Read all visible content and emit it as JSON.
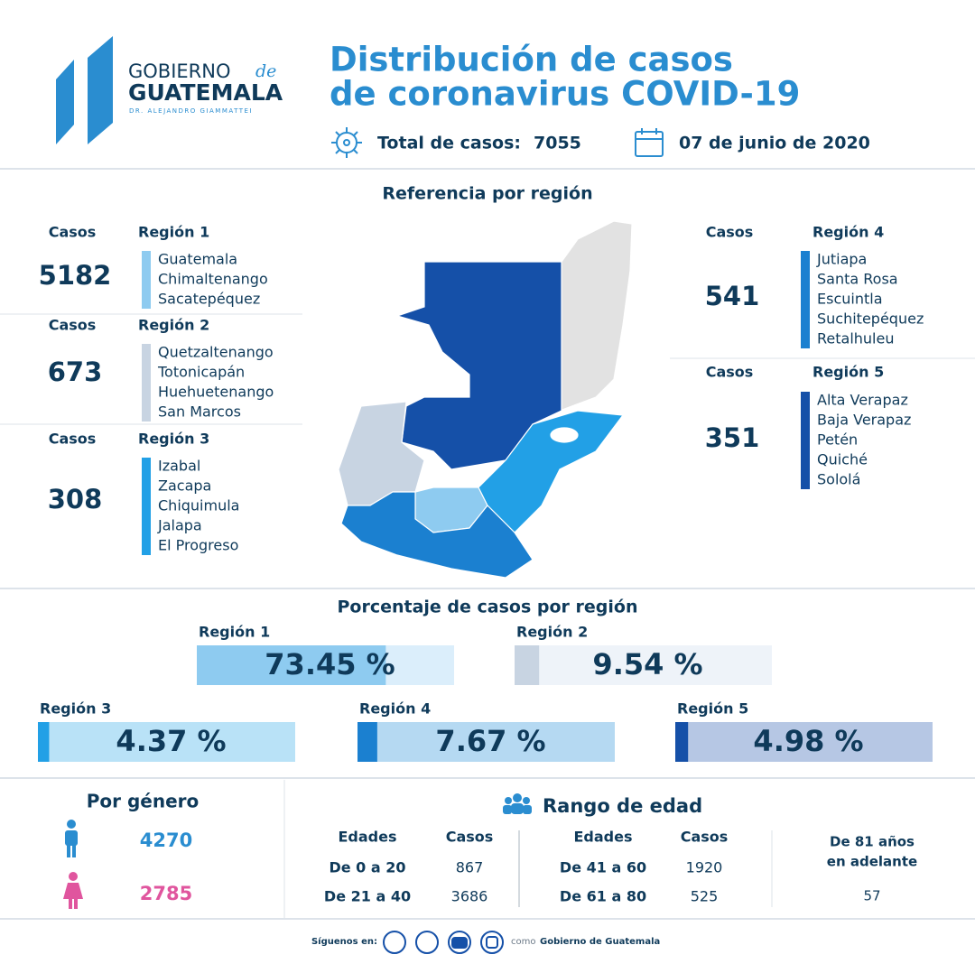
{
  "header": {
    "logo_line1": "GOBIERNO",
    "logo_de": "de",
    "logo_line2": "GUATEMALA",
    "logo_subtitle": "DR. ALEJANDRO GIAMMATTEI",
    "title_line1": "Distribución de casos",
    "title_line2": "de coronavirus COVID-19",
    "total_label": "Total de casos:",
    "total": 7055,
    "date": "07 de junio de 2020"
  },
  "reference": {
    "title": "Referencia por región",
    "regions": [
      {
        "cases_label": "Casos",
        "cases": 5182,
        "name": "Región 1",
        "color": "#8ecbf0",
        "departments": [
          "Guatemala",
          "Chimaltenango",
          "Sacatepéquez"
        ]
      },
      {
        "cases_label": "Casos",
        "cases": 673,
        "name": "Región 2",
        "color": "#c8d4e2",
        "departments": [
          "Quetzaltenango",
          "Totonicapán",
          "Huehuetenango",
          "San Marcos"
        ]
      },
      {
        "cases_label": "Casos",
        "cases": 308,
        "name": "Región 3",
        "color": "#22a0e6",
        "departments": [
          "Izabal",
          "Zacapa",
          "Chiquimula",
          "Jalapa",
          "El Progreso"
        ]
      },
      {
        "cases_label": "Casos",
        "cases": 541,
        "name": "Región 4",
        "color": "#1b80d0",
        "departments": [
          "Jutiapa",
          "Santa Rosa",
          "Escuintla",
          "Suchitepéquez",
          "Retalhuleu"
        ]
      },
      {
        "cases_label": "Casos",
        "cases": 351,
        "name": "Región 5",
        "color": "#1550a8",
        "departments": [
          "Alta Verapaz",
          "Baja Verapaz",
          "Petén",
          "Quiché",
          "Sololá"
        ]
      }
    ]
  },
  "percentages": {
    "title": "Porcentaje de casos por región",
    "regions": [
      {
        "name": "Región 1",
        "percent": 73.45,
        "label": "73.45 %",
        "color": "#8ecbf0",
        "track": "#dbeefb"
      },
      {
        "name": "Región 2",
        "percent": 9.54,
        "label": "9.54 %",
        "color": "#c8d4e2",
        "track": "#eef3f9"
      },
      {
        "name": "Región 3",
        "percent": 4.37,
        "label": "4.37 %",
        "color": "#22a0e6",
        "track": "#b9e2f7"
      },
      {
        "name": "Región 4",
        "percent": 7.67,
        "label": "7.67 %",
        "color": "#1b80d0",
        "track": "#b5d9f2"
      },
      {
        "name": "Región 5",
        "percent": 4.98,
        "label": "4.98 %",
        "color": "#1550a8",
        "track": "#b6c7e4"
      }
    ]
  },
  "gender": {
    "title": "Por género",
    "male": 4270,
    "female": 2785
  },
  "age": {
    "title": "Rango de edad",
    "headers": [
      "Edades",
      "Casos",
      "Edades",
      "Casos"
    ],
    "rows": [
      [
        "De 0 a 20",
        867,
        "De 41 a 60",
        1920
      ],
      [
        "De 21 a 40",
        3686,
        "De 61 a 80",
        525
      ]
    ],
    "oldest_label": [
      "De 81 años",
      "en adelante"
    ],
    "oldest_cases": 57
  },
  "footer": {
    "follow": "Síguenos en:",
    "como": "como",
    "account": "Gobierno de Guatemala"
  }
}
